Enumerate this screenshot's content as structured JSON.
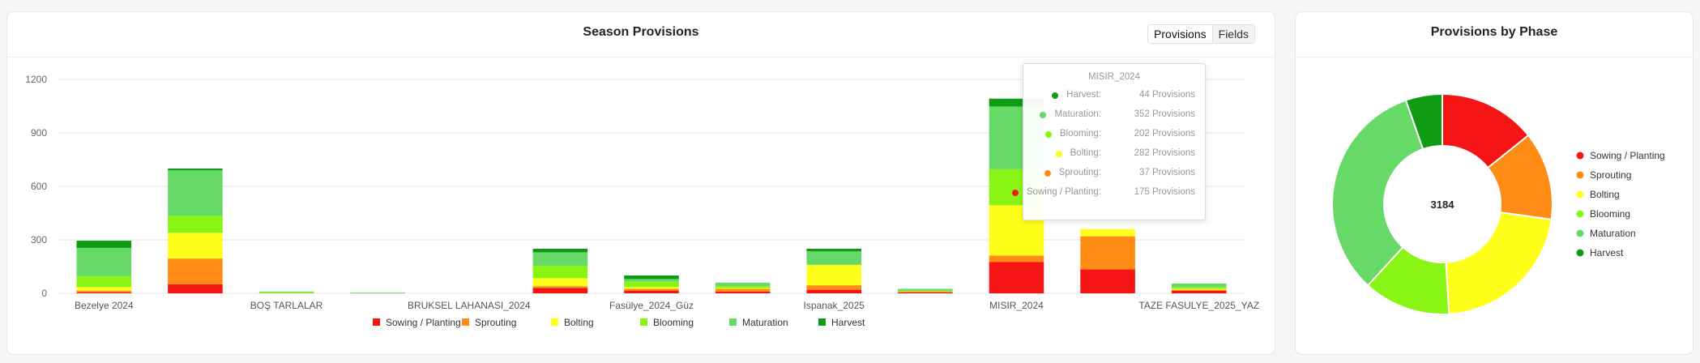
{
  "season": {
    "title": "Season Provisions",
    "toggle": [
      "Provisions",
      "Fields"
    ],
    "tooltip": {
      "title": "MISIR_2024",
      "unit": "Provisions",
      "rows": [
        {
          "label": "Harvest:",
          "value": "44 Provisions",
          "color": "#0f9b14"
        },
        {
          "label": "Maturation:",
          "value": "352 Provisions",
          "color": "#66d966"
        },
        {
          "label": "Blooming:",
          "value": "202 Provisions",
          "color": "#88f514"
        },
        {
          "label": "Bolting:",
          "value": "282 Provisions",
          "color": "#ffff1a"
        },
        {
          "label": "Sprouting:",
          "value": "37 Provisions",
          "color": "#ff8c14"
        },
        {
          "label": "Sowing / Planting:",
          "value": "175 Provisions",
          "color": "#f51414"
        }
      ]
    }
  },
  "phase": {
    "title": "Provisions by Phase",
    "total": "3184"
  },
  "chart_data": [
    {
      "type": "bar",
      "stacked": true,
      "title": "Season Provisions",
      "categories": [
        "Bezelye 2024",
        "",
        "BOŞ TARLALAR",
        "",
        "BRUKSEL LAHANASI_2024",
        "",
        "Fasülye_2024_Güz",
        "",
        "Ispanak_2025",
        "",
        "MISIR_2024",
        "",
        "TAZE FASULYE_2025_YAZ"
      ],
      "ylim": [
        0,
        1200
      ],
      "yticks": [
        0,
        300,
        600,
        900,
        1200
      ],
      "grid": true,
      "legend": "bottom",
      "series": [
        {
          "name": "Sowing / Planting",
          "color": "#f51414",
          "values": [
            5,
            50,
            0,
            0,
            0,
            30,
            15,
            10,
            20,
            5,
            175,
            135,
            15
          ]
        },
        {
          "name": "Sprouting",
          "color": "#ff8c14",
          "values": [
            10,
            145,
            0,
            0,
            0,
            10,
            10,
            15,
            25,
            5,
            37,
            185,
            5
          ]
        },
        {
          "name": "Bolting",
          "color": "#ffff1a",
          "values": [
            20,
            145,
            0,
            0,
            0,
            45,
            10,
            5,
            115,
            0,
            282,
            40,
            5
          ]
        },
        {
          "name": "Blooming",
          "color": "#88f514",
          "values": [
            60,
            95,
            5,
            2,
            0,
            70,
            30,
            10,
            0,
            5,
            202,
            0,
            10
          ]
        },
        {
          "name": "Maturation",
          "color": "#66d966",
          "values": [
            160,
            255,
            5,
            3,
            0,
            75,
            15,
            20,
            75,
            10,
            352,
            0,
            20
          ]
        },
        {
          "name": "Harvest",
          "color": "#0f9b14",
          "values": [
            40,
            10,
            0,
            0,
            0,
            20,
            20,
            0,
            15,
            0,
            44,
            0,
            0
          ]
        }
      ]
    },
    {
      "type": "pie",
      "donut": true,
      "title": "Provisions by Phase",
      "center_label": "3184",
      "legend": "right",
      "labels": [
        "Sowing / Planting",
        "Sprouting",
        "Bolting",
        "Blooming",
        "Maturation",
        "Harvest"
      ],
      "colors": [
        "#f51414",
        "#ff8c14",
        "#ffff1a",
        "#88f514",
        "#66d966",
        "#0f9b14"
      ],
      "values": [
        454,
        413,
        694,
        407,
        1045,
        171
      ]
    }
  ]
}
